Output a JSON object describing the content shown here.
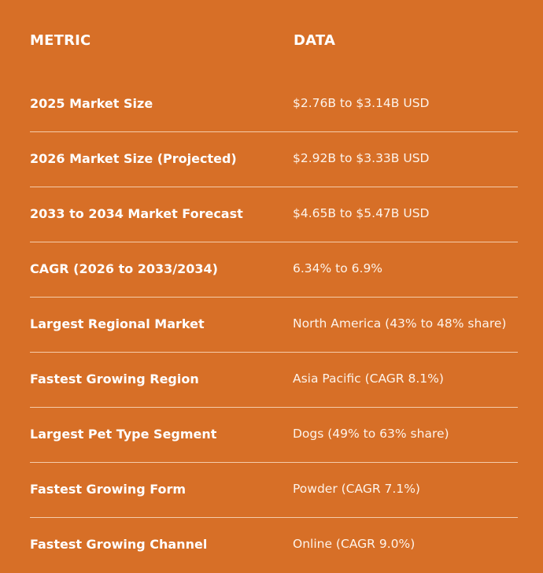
{
  "header": {
    "metric_label": "METRIC",
    "data_label": "DATA"
  },
  "rows": [
    {
      "metric": "2025 Market Size",
      "value": "$2.76B to $3.14B USD"
    },
    {
      "metric": "2026 Market Size (Projected)",
      "value": "$2.92B to $3.33B USD"
    },
    {
      "metric": "2033 to 2034 Market Forecast",
      "value": "$4.65B to $5.47B USD"
    },
    {
      "metric": "CAGR (2026 to 2033/2034)",
      "value": "6.34% to 6.9%"
    },
    {
      "metric": "Largest Regional Market",
      "value": "North America (43% to 48% share)"
    },
    {
      "metric": "Fastest Growing Region",
      "value": "Asia Pacific (CAGR 8.1%)"
    },
    {
      "metric": "Largest Pet Type Segment",
      "value": "Dogs (49% to 63% share)"
    },
    {
      "metric": "Fastest Growing Form",
      "value": "Powder (CAGR 7.1%)"
    },
    {
      "metric": "Fastest Growing Channel",
      "value": "Online (CAGR 9.0%)"
    }
  ],
  "colors": {
    "background": "#D76F27",
    "text": "#FFFFFF"
  }
}
